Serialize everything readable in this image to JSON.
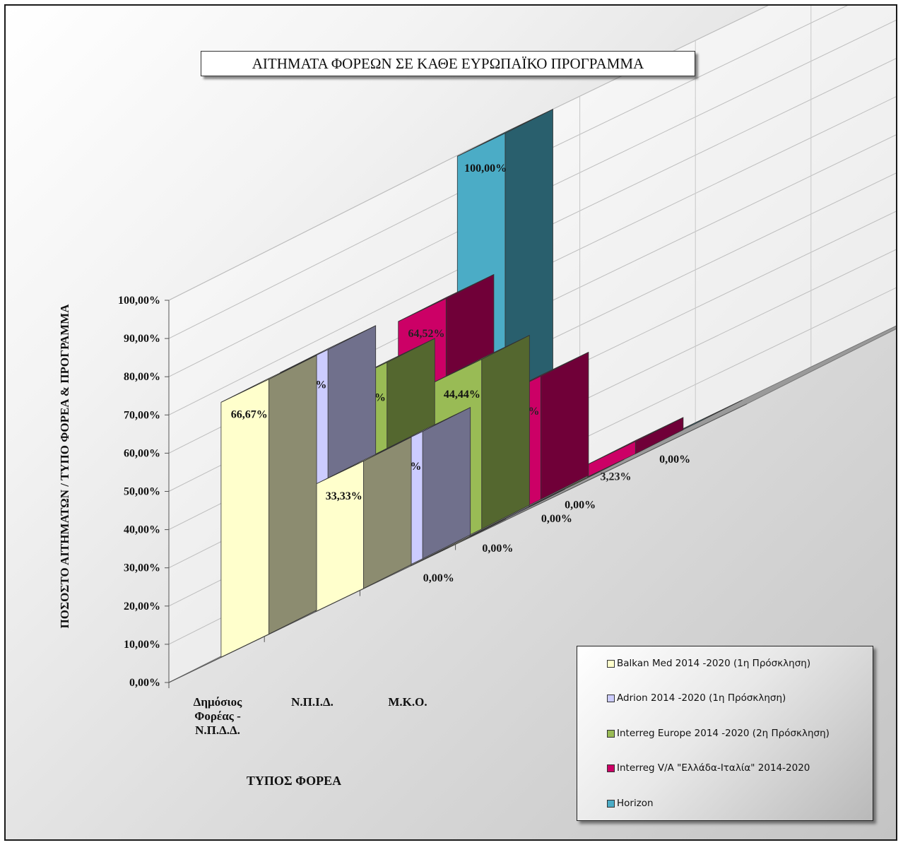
{
  "chart_data": {
    "type": "bar",
    "title": "ΑΙΤΗΜΑΤΑ ΦΟΡΕΩΝ ΣΕ ΚΑΘΕ ΕΥΡΩΠΑΪΚΟ ΠΡΟΓΡΑΜΜΑ",
    "xlabel": "ΤΥΠΟΣ ΦΟΡΕΑ",
    "ylabel": "ΠΟΣΟΣΤΟ ΑΙΤΗΜΑΤΩΝ / ΤΥΠΟ ΦΟΡΕΑ & ΠΡΟΓΡΑΜΜΑ",
    "categories": [
      [
        "Δημόσιος",
        "Φορέας -",
        "Ν.Π.Δ.Δ."
      ],
      [
        "Ν.Π.Ι.Δ."
      ],
      [
        "Μ.Κ.Ο."
      ]
    ],
    "ylim": [
      0,
      100
    ],
    "yticks": [
      "0,00%",
      "10,00%",
      "20,00%",
      "30,00%",
      "40,00%",
      "50,00%",
      "60,00%",
      "70,00%",
      "80,00%",
      "90,00%",
      "100,00%"
    ],
    "grid": true,
    "legend_position": "bottom-right",
    "series": [
      {
        "name": "Balkan Med 2014 -2020 (1η Πρόσκληση)",
        "color": "#ffffcc",
        "values": [
          66.67,
          33.33,
          0
        ],
        "labels": [
          "66,67%",
          "33,33%",
          "0,00%"
        ]
      },
      {
        "name": "Adrion 2014 -2020 (1η Πρόσκληση)",
        "color": "#ccccff",
        "values": [
          66.67,
          33.33,
          0
        ],
        "labels": [
          "66,67%",
          "33,33%",
          "0,00%"
        ]
      },
      {
        "name": "Interreg Europe 2014 -2020 (2η Πρόσκληση)",
        "color": "#99bb55",
        "values": [
          55.56,
          44.44,
          0
        ],
        "labels": [
          "55,56%",
          "44,44%",
          "0,00%"
        ]
      },
      {
        "name": "Interreg V/A \"Ελλάδα-Ιταλία\" 2014-2020",
        "color": "#cc0066",
        "values": [
          64.52,
          32.26,
          3.23
        ],
        "labels": [
          "64,52%",
          "32,26%",
          "3,23%"
        ]
      },
      {
        "name": "Horizon",
        "color": "#4bacc6",
        "values": [
          100,
          0,
          0
        ],
        "labels": [
          "100,00%",
          "0,00%",
          "0,00%"
        ]
      }
    ]
  }
}
